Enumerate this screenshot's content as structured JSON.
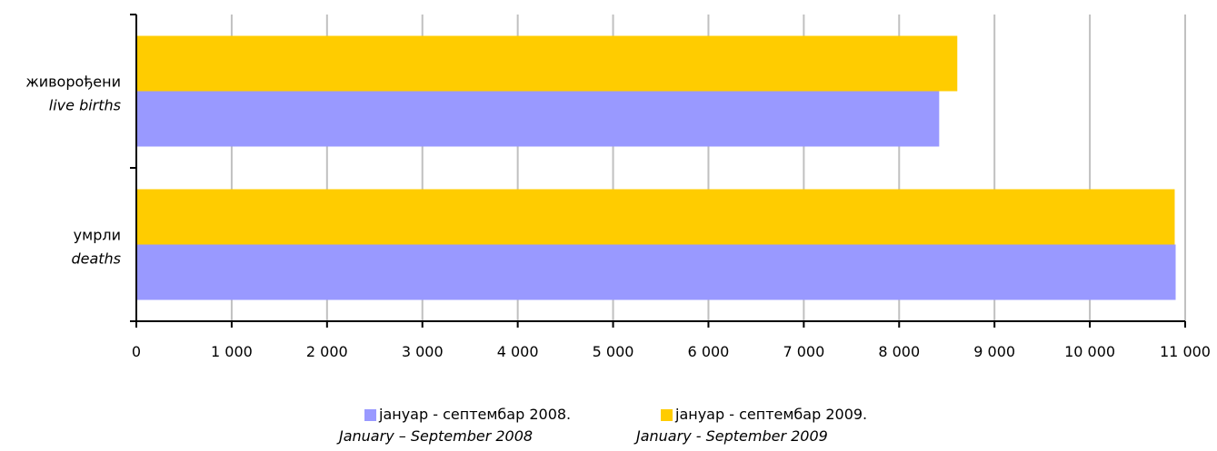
{
  "chart_data": {
    "type": "bar",
    "orientation": "horizontal",
    "categories": [
      {
        "label": "живорођени",
        "label_en": "live births"
      },
      {
        "label": "умрли",
        "label_en": "deaths"
      }
    ],
    "series": [
      {
        "name": "јануар - септембар 2008.",
        "name_en": "January – September 2008",
        "color": "#9999ff",
        "values": [
          8420,
          10900
        ]
      },
      {
        "name": "јануар - септембар 2009.",
        "name_en": "January  - September 2009",
        "color": "#ffcc00",
        "values": [
          8610,
          10890
        ]
      }
    ],
    "xlim": [
      0,
      11000
    ],
    "x_ticks": [
      0,
      1000,
      2000,
      3000,
      4000,
      5000,
      6000,
      7000,
      8000,
      9000,
      10000,
      11000
    ],
    "x_tick_labels": [
      "0",
      "1 000",
      "2 000",
      "3 000",
      "4 000",
      "5 000",
      "6 000",
      "7 000",
      "8 000",
      "9 000",
      "10 000",
      "11 000"
    ],
    "grid": true,
    "grid_color": "#c0c0c0",
    "legend_position": "bottom"
  }
}
